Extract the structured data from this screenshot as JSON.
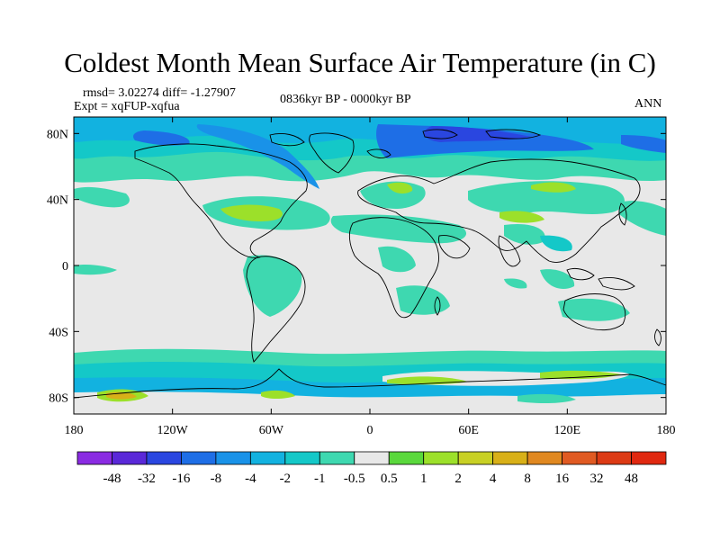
{
  "title": "Coldest Month Mean Surface Air Temperature (in C)",
  "stats": "rmsd= 3.02274 diff= -1.27907",
  "experiment": "Expt = xqFUP-xqfua",
  "period": "0836kyr BP - 0000kyr BP",
  "season": "ANN",
  "map": {
    "projection": "cylindrical equidistant",
    "lon_ticks": [
      "180",
      "120W",
      "60W",
      "0",
      "60E",
      "120E",
      "180"
    ],
    "lat_ticks": [
      "80N",
      "40N",
      "0",
      "40S",
      "80S"
    ]
  },
  "colorbar": {
    "labels": [
      "-48",
      "-32",
      "-16",
      "-8",
      "-4",
      "-2",
      "-1",
      "-0.5",
      "0.5",
      "1",
      "2",
      "4",
      "8",
      "16",
      "32",
      "48"
    ],
    "colors": [
      "#8a2be2",
      "#5a28d8",
      "#2a46e0",
      "#1e6ee6",
      "#1992e8",
      "#12b2e0",
      "#14c8c8",
      "#3ed8b0",
      "#e8e8e8",
      "#5ad83c",
      "#9ce02a",
      "#c8d024",
      "#d8b018",
      "#e08820",
      "#e05a22",
      "#dc3a14",
      "#e02810"
    ]
  }
}
